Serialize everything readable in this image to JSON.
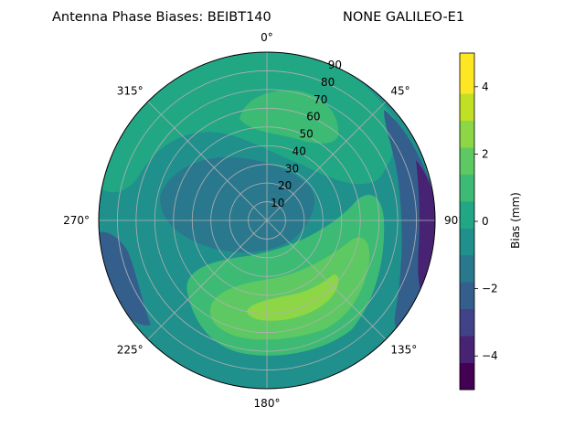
{
  "chart_data": {
    "type": "heatmap",
    "title_left": "Antenna Phase Biases: BEIBT140",
    "title_right": "NONE GALILEO-E1",
    "projection": "polar",
    "azimuth_ticks": [
      "0°",
      "45°",
      "90°",
      "135°",
      "180°",
      "225°",
      "270°",
      "315°"
    ],
    "radial_ticks": [
      "10",
      "20",
      "30",
      "40",
      "50",
      "60",
      "70",
      "80",
      "90"
    ],
    "radial_range": [
      0,
      90
    ],
    "grid": true,
    "colorbar": {
      "label": "Bias (mm)",
      "ticks": [
        "−4",
        "−2",
        "0",
        "2",
        "4"
      ],
      "range": [
        -5,
        5
      ],
      "levels": [
        -5,
        -4.2,
        -3.4,
        -2.6,
        -1.8,
        -1.0,
        -0.2,
        0.6,
        1.4,
        2.2,
        3.0,
        3.8,
        5.0
      ],
      "colors": [
        "#440154",
        "#482374",
        "#404387",
        "#345f8d",
        "#29788e",
        "#20908d",
        "#22a784",
        "#3dbb74",
        "#5ec962",
        "#8dd645",
        "#c0df25",
        "#fde725"
      ]
    },
    "regions": [
      {
        "label": "outer ring",
        "level_index": 5
      },
      {
        "label": "north band",
        "level_index": 6
      },
      {
        "label": "inner north",
        "level_index": 7
      },
      {
        "label": "center",
        "level_index": 4
      },
      {
        "label": "east edge",
        "level_index": 3
      },
      {
        "label": "far east edge",
        "level_index": 1
      },
      {
        "label": "west edge",
        "level_index": 3
      },
      {
        "label": "southeast lobe",
        "level_index": 7
      },
      {
        "label": "southeast core",
        "level_index": 8
      },
      {
        "label": "southeast peak",
        "level_index": 9
      }
    ]
  }
}
